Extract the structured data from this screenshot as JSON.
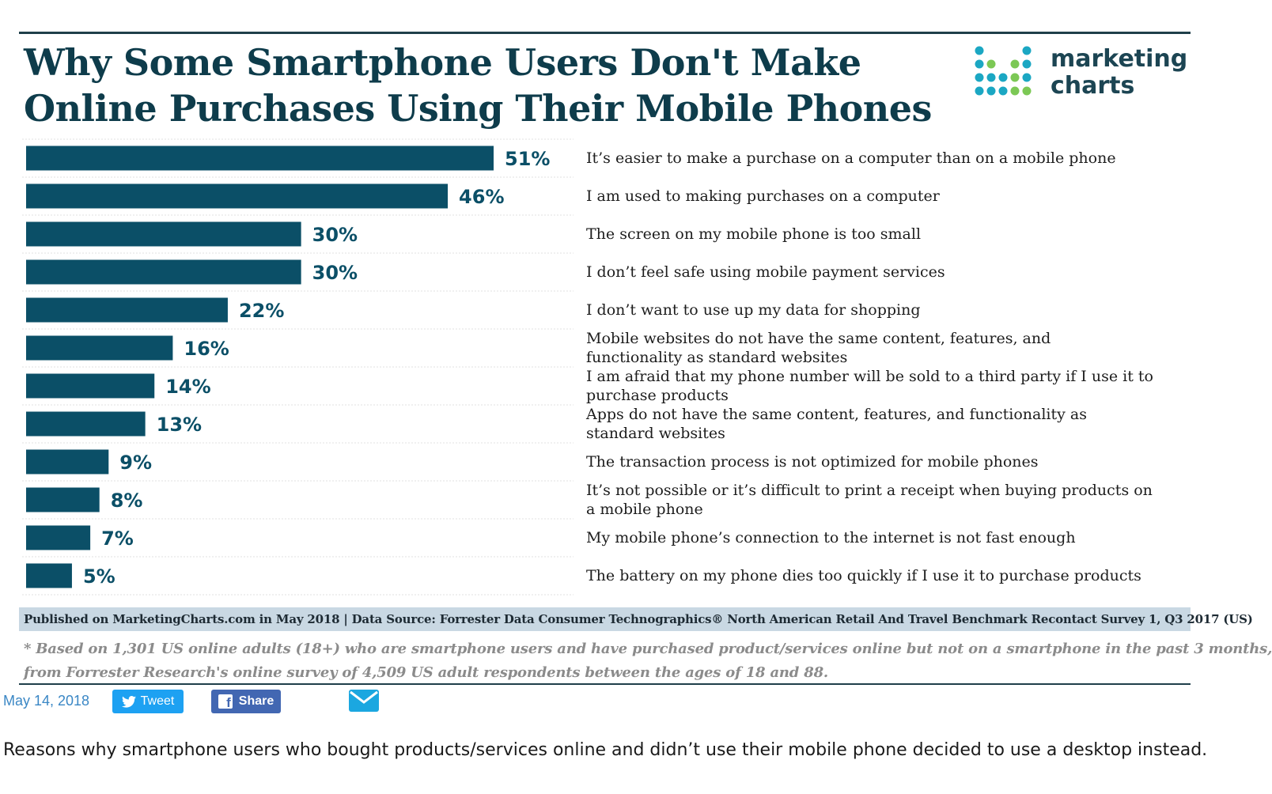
{
  "header": {
    "title_line1": "Why Some Smartphone Users Don't Make",
    "title_line2": "Online Purchases Using Their Mobile Phones",
    "logo_line1": "marketing",
    "logo_line2": "charts"
  },
  "colors": {
    "bar": "#0b4f67",
    "title": "#0e3c4b",
    "credit_bar": "#c9d8e3",
    "logo_teal": "#1ba7c3",
    "logo_green": "#7cc855",
    "tweet": "#1da1f2",
    "facebook": "#4267b2"
  },
  "chart_data": {
    "type": "bar",
    "orientation": "horizontal",
    "title": "Why Some Smartphone Users Don't Make Online Purchases Using Their Mobile Phones",
    "xlim": [
      0,
      51
    ],
    "grid": false,
    "legend": "none",
    "categories": [
      "It's easier to make a purchase on a computer than on a mobile phone",
      "I am used to making purchases on a computer",
      "The screen on my mobile phone is too small",
      "I don't feel safe using mobile payment services",
      "I don't want to use up my data for shopping",
      "Mobile websites do not have the same content, features, and functionality as standard websites",
      "I am afraid that my phone number will be sold to a third party if I use it to purchase products",
      "Apps do not have the same content, features, and functionality as standard websites",
      "The transaction process is not optimized for mobile phones",
      "It's not possible or it's difficult to print a receipt when buying products on a mobile phone",
      "My mobile phone's connection to the internet is not fast enough",
      "The battery on my phone dies too quickly if I use it to purchase products"
    ],
    "values": [
      51,
      46,
      30,
      30,
      22,
      16,
      14,
      13,
      9,
      8,
      7,
      5
    ],
    "value_labels": [
      "51%",
      "46%",
      "30%",
      "30%",
      "22%",
      "16%",
      "14%",
      "13%",
      "9%",
      "8%",
      "7%",
      "5%"
    ],
    "label_lines": [
      [
        "It’s easier to make a purchase on a computer than on a mobile phone"
      ],
      [
        "I am used to making purchases on a computer"
      ],
      [
        "The screen on my mobile phone is too small"
      ],
      [
        "I don’t feel safe using mobile payment services"
      ],
      [
        "I don’t want to use up my data for shopping"
      ],
      [
        "Mobile websites do not have the same content, features, and",
        "functionality as standard websites"
      ],
      [
        "I am afraid that my phone number will be sold to a third party if I use it to",
        "purchase products"
      ],
      [
        "Apps do not have the same content, features, and functionality as",
        "standard websites"
      ],
      [
        "The transaction process is not optimized for mobile phones"
      ],
      [
        "It’s not possible or it’s difficult to print a receipt when buying products on",
        "a mobile phone"
      ],
      [
        "My mobile phone’s connection to the internet is not fast enough"
      ],
      [
        "The battery on my phone dies too quickly if I use it to purchase products"
      ]
    ]
  },
  "footer": {
    "credit": "Published on MarketingCharts.com in May 2018 | Data Source: Forrester Data Consumer Technographics® North American Retail And Travel Benchmark Recontact Survey 1, Q3 2017 (US)",
    "note_line1": "* Based on 1,301 US online adults (18+) who are smartphone users and have purchased product/services online but not on a smartphone in the past 3 months,",
    "note_line2": "from Forrester Research's online survey of 4,509 US adult respondents between the ages of 18 and 88."
  },
  "social": {
    "date": "May 14, 2018",
    "tweet_label": "Tweet",
    "share_label": "Share",
    "mail_icon": "envelope-icon"
  },
  "caption": "Reasons why smartphone users who bought products/services online and didn’t use their mobile phone decided to use a desktop instead."
}
